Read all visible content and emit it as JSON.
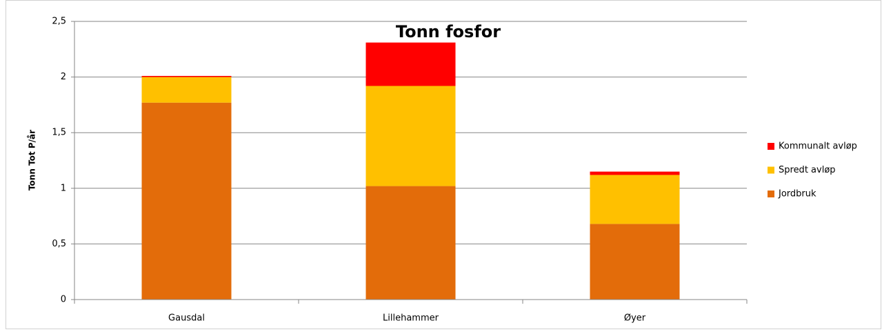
{
  "chart_data": {
    "type": "stacked_bar",
    "title": "Tonn fosfor",
    "y_label": "Tonn Tot P/år",
    "categories": [
      "Gausdal",
      "Lillehammer",
      "Øyer"
    ],
    "series": [
      {
        "name": "Jordbruk",
        "color": "#e36c0a",
        "values": [
          1.77,
          1.02,
          0.68
        ]
      },
      {
        "name": "Spredt avløp",
        "color": "#ffc000",
        "values": [
          0.23,
          0.9,
          0.44
        ]
      },
      {
        "name": "Kommunalt avløp",
        "color": "#ff0000",
        "values": [
          0.01,
          0.39,
          0.03
        ]
      }
    ],
    "ylim": [
      0,
      2.5
    ],
    "yticks": [
      0,
      {
        "value": 0.5,
        "label": "0,5"
      },
      1,
      {
        "value": 1.5,
        "label": "1,5"
      },
      2,
      {
        "value": 2.5,
        "label": "2,5"
      }
    ],
    "grid": true,
    "legend": "right"
  }
}
